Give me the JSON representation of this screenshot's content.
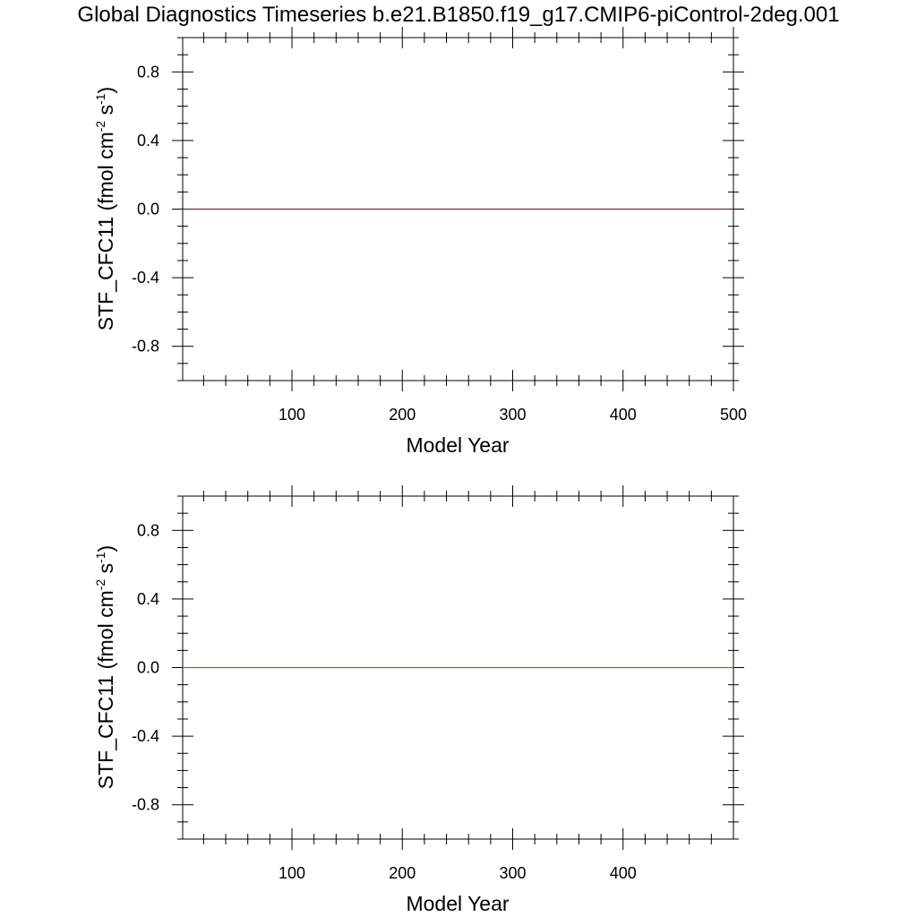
{
  "title": "Global Diagnostics Timeseries b.e21.B1850.f19_g17.CMIP6-piControl-2deg.001",
  "chart_data": [
    {
      "type": "line",
      "xlabel": "Model Year",
      "ylabel": {
        "main": "STF_CFC11 (fmol cm",
        "sup1": "-2",
        "mid": " s",
        "sup2": "-1",
        "end": ")"
      },
      "xlim": [
        1,
        500
      ],
      "ylim": [
        -1,
        1
      ],
      "xticks": [
        100,
        200,
        300,
        400,
        500
      ],
      "yticks": [
        -0.8,
        -0.4,
        0.0,
        0.4,
        0.8
      ],
      "ytick_labels": [
        "-0.8",
        "-0.4",
        "0.0",
        "0.4",
        "0.8"
      ],
      "grid": false,
      "series": [
        {
          "x": [
            1,
            500
          ],
          "y": [
            0,
            0
          ],
          "color": "#7a2e1e"
        }
      ]
    },
    {
      "type": "line",
      "xlabel": "Model Year",
      "ylabel": {
        "main": "STF_CFC11 (fmol cm",
        "sup1": "-2",
        "mid": " s",
        "sup2": "-1",
        "end": ")"
      },
      "xlim": [
        1,
        500
      ],
      "ylim": [
        -1,
        1
      ],
      "xticks": [
        100,
        200,
        300,
        400
      ],
      "yticks": [
        -0.8,
        -0.4,
        0.0,
        0.4,
        0.8
      ],
      "ytick_labels": [
        "-0.8",
        "-0.4",
        "0.0",
        "0.4",
        "0.8"
      ],
      "grid": false,
      "series": [
        {
          "x": [
            1,
            500
          ],
          "y": [
            0,
            0
          ],
          "color": "#b5522e"
        }
      ]
    }
  ]
}
